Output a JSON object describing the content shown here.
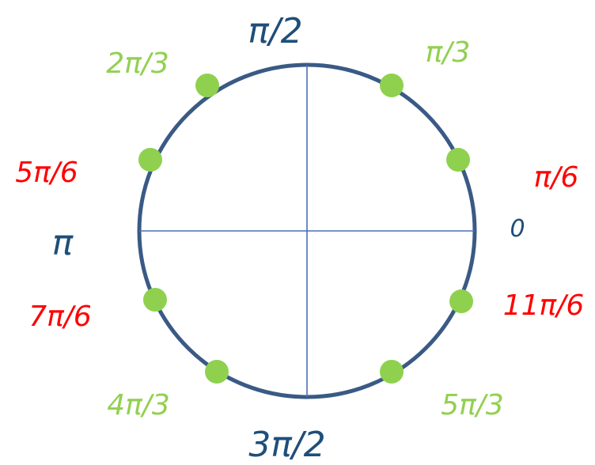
{
  "colors": {
    "circle": "#3a5a85",
    "axes": "#4a6fb5",
    "point": "#8fd14f",
    "label_main": "#1f4e79",
    "label_green": "#92d050",
    "label_red": "#ff0000"
  },
  "angles": {
    "pi_over_2": "π/2",
    "pi_over_3": "π/3",
    "two_pi_over_3": "2π/3",
    "pi_over_6": "π/6",
    "five_pi_over_6": "5π/6",
    "zero": "0",
    "pi": "π",
    "seven_pi_over_6": "7π/6",
    "eleven_pi_over_6": "11π/6",
    "four_pi_over_3": "4π/3",
    "five_pi_over_3": "5π/3",
    "three_pi_over_2": "3π/2"
  }
}
